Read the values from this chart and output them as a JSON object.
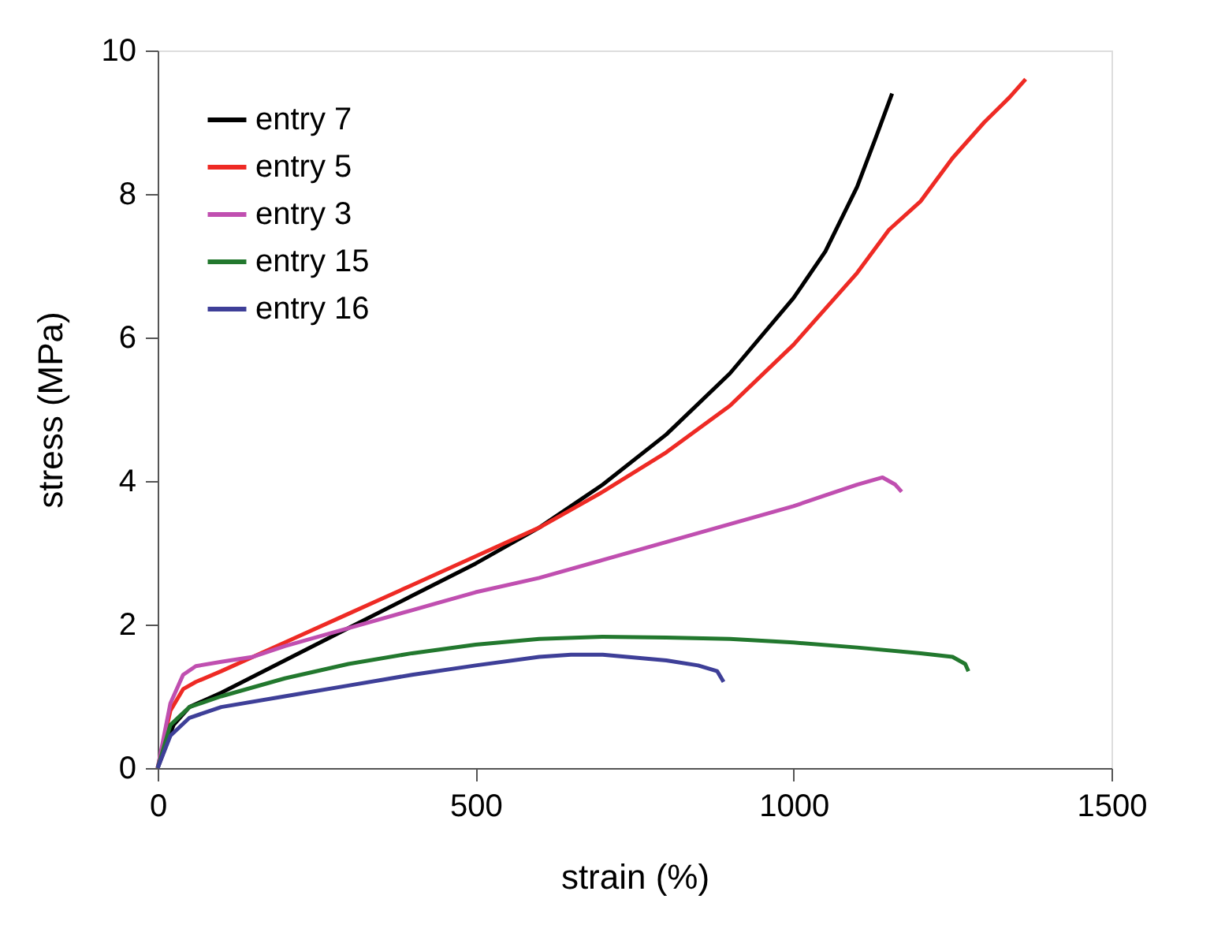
{
  "chart_data": {
    "type": "line",
    "xlabel": "strain (%)",
    "ylabel": "stress (MPa)",
    "xlim": [
      0,
      1500
    ],
    "xticks": [
      0,
      500,
      1000,
      1500
    ],
    "ylim": [
      0,
      10
    ],
    "yticks": [
      0,
      2,
      4,
      6,
      8,
      10
    ],
    "grid": false,
    "legend": "top left",
    "marker": "none",
    "line_style": "solid",
    "series": [
      {
        "name": "entry 7",
        "color": "#000000",
        "x": [
          0,
          25,
          50,
          100,
          200,
          300,
          400,
          500,
          600,
          700,
          800,
          900,
          1000,
          1050,
          1100,
          1130,
          1155
        ],
        "values": [
          0,
          0.6,
          0.85,
          1.05,
          1.5,
          1.95,
          2.4,
          2.85,
          3.35,
          3.95,
          4.65,
          5.5,
          6.55,
          7.2,
          8.1,
          8.8,
          9.4
        ]
      },
      {
        "name": "entry 5",
        "color": "#ee2a24",
        "x": [
          0,
          20,
          40,
          60,
          100,
          200,
          300,
          400,
          500,
          600,
          700,
          800,
          900,
          1000,
          1100,
          1150,
          1200,
          1250,
          1300,
          1340,
          1365
        ],
        "values": [
          0,
          0.8,
          1.1,
          1.2,
          1.35,
          1.75,
          2.15,
          2.55,
          2.95,
          3.35,
          3.85,
          4.4,
          5.05,
          5.9,
          6.9,
          7.5,
          7.9,
          8.5,
          9.0,
          9.35,
          9.6
        ]
      },
      {
        "name": "entry 3",
        "color": "#c04fb0",
        "x": [
          0,
          20,
          40,
          60,
          100,
          150,
          200,
          300,
          400,
          500,
          600,
          700,
          800,
          900,
          1000,
          1050,
          1100,
          1140,
          1160,
          1170
        ],
        "values": [
          0,
          0.9,
          1.3,
          1.42,
          1.48,
          1.55,
          1.7,
          1.95,
          2.2,
          2.45,
          2.65,
          2.9,
          3.15,
          3.4,
          3.65,
          3.8,
          3.95,
          4.05,
          3.95,
          3.85
        ]
      },
      {
        "name": "entry 15",
        "color": "#22782e",
        "x": [
          0,
          20,
          50,
          100,
          200,
          300,
          400,
          500,
          600,
          700,
          800,
          900,
          1000,
          1100,
          1200,
          1250,
          1270,
          1275
        ],
        "values": [
          0,
          0.6,
          0.85,
          1.0,
          1.25,
          1.45,
          1.6,
          1.72,
          1.8,
          1.83,
          1.82,
          1.8,
          1.75,
          1.68,
          1.6,
          1.55,
          1.45,
          1.35
        ]
      },
      {
        "name": "entry 16",
        "color": "#3e3f98",
        "x": [
          0,
          20,
          50,
          100,
          200,
          300,
          400,
          500,
          600,
          650,
          700,
          800,
          850,
          880,
          890
        ],
        "values": [
          0,
          0.45,
          0.7,
          0.85,
          1.0,
          1.15,
          1.3,
          1.43,
          1.55,
          1.58,
          1.58,
          1.5,
          1.43,
          1.35,
          1.2
        ]
      }
    ]
  }
}
